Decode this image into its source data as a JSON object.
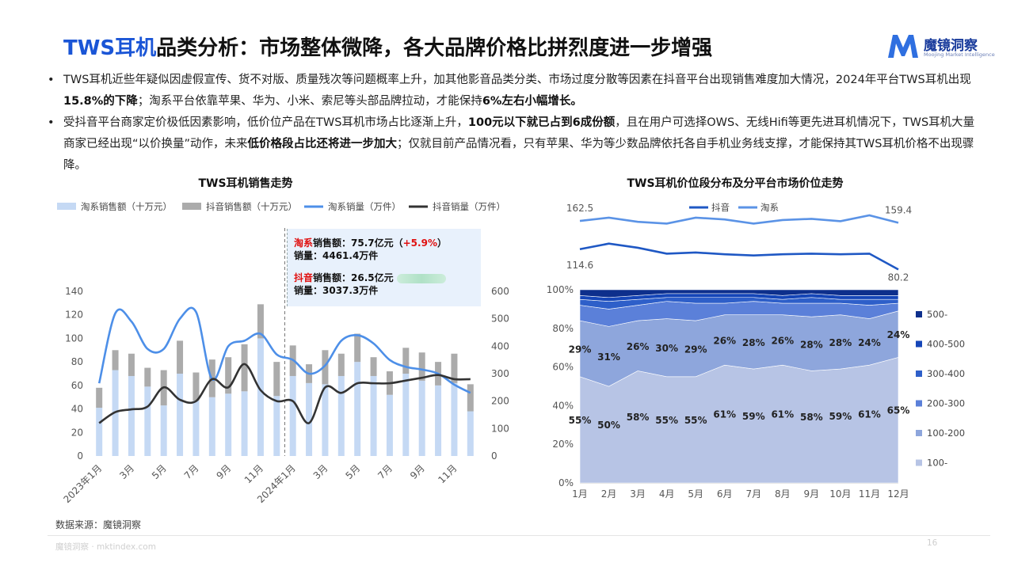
{
  "header": {
    "title_accent": "TWS耳机",
    "title_rest": "品类分析：市场整体微降，各大品牌价格比拼烈度进一步增强",
    "logo_name": "魔镜洞察",
    "logo_sub": "Moojing Market Intelligence",
    "logo_color": "#2f6fe0"
  },
  "bullets": [
    {
      "marker": "•",
      "parts": [
        {
          "t": "TWS耳机近些年疑似因虚假宣传、货不对版、质量残次等问题概率上升，加其他影音品类分类、市场过度分散等因素在抖音平台出现销售难度加大情况，2024年平台TWS耳机出现",
          "b": false
        },
        {
          "t": "15.8%的下降",
          "b": true
        },
        {
          "t": "；淘系平台依靠苹果、华为、小米、索尼等头部品牌拉动，才能保持",
          "b": false
        },
        {
          "t": "6%左右小幅增长。",
          "b": true
        }
      ]
    },
    {
      "marker": "•",
      "parts": [
        {
          "t": "受抖音平台商家定价极低因素影响，低价位产品在TWS耳机市场占比逐渐上升，",
          "b": false
        },
        {
          "t": "100元以下就已占到6成份额",
          "b": true
        },
        {
          "t": "，且在用户可选择OWS、无线Hifi等更先进耳机情况下，TWS耳机大量商家已经出现“以价换量”动作，未来",
          "b": false
        },
        {
          "t": "低价格段占比还将进一步加大",
          "b": true
        },
        {
          "t": "；仅就目前产品情况看，只有苹果、华为等少数品牌依托各自手机业务线支撑，才能保持其TWS耳机价格不出现骤降。",
          "b": false
        }
      ]
    }
  ],
  "annotation": {
    "taobao_name": "淘系",
    "taobao_sales_label": "销售额：75.7亿元（",
    "taobao_growth": "+5.9%",
    "taobao_close": "）",
    "taobao_volume": "销量：4461.4万件",
    "douyin_name": "抖音",
    "douyin_sales_label": "销售额：26.5亿元",
    "douyin_volume": "销量：3037.3万件"
  },
  "source": "数据来源：魔镜洞察",
  "footer": {
    "left": "魔镜洞察 · mktindex.com",
    "page": "16"
  },
  "chart_data": [
    {
      "type": "bar",
      "title": "TWS耳机销售走势",
      "categories": [
        "2023年1月",
        "2月",
        "3月",
        "4月",
        "5月",
        "6月",
        "7月",
        "8月",
        "9月",
        "10月",
        "11月",
        "12月",
        "2024年1月",
        "2月",
        "3月",
        "4月",
        "5月",
        "6月",
        "7月",
        "8月",
        "9月",
        "10月",
        "11月",
        "12月"
      ],
      "x_tick_labels": [
        "2023年1月",
        "",
        "3月",
        "",
        "5月",
        "",
        "7月",
        "",
        "9月",
        "",
        "11月",
        "",
        "2024年1月",
        "",
        "3月",
        "",
        "5月",
        "",
        "7月",
        "",
        "9月",
        "",
        "11月",
        ""
      ],
      "series": [
        {
          "name": "淘系销售额（十万元）",
          "kind": "bar",
          "axis": "left",
          "color": "#c5d9f4",
          "values": [
            41,
            73,
            68,
            59,
            43,
            70,
            47,
            50,
            53,
            55,
            100,
            51,
            68,
            62,
            61,
            68,
            80,
            68,
            52,
            70,
            64,
            60,
            62,
            38
          ]
        },
        {
          "name": "抖音销售额（十万元）",
          "kind": "bar",
          "axis": "left",
          "color": "#ababab",
          "values": [
            17,
            17,
            19,
            16,
            30,
            28,
            24,
            32,
            31,
            40,
            29,
            29,
            26,
            16,
            29,
            19,
            24,
            16,
            20,
            22,
            24,
            20,
            25,
            23
          ]
        },
        {
          "name": "淘系销量（万件）",
          "kind": "line",
          "axis": "right",
          "color": "#4d8fe8",
          "values": [
            265,
            520,
            490,
            390,
            390,
            500,
            525,
            280,
            400,
            420,
            445,
            370,
            350,
            300,
            330,
            420,
            440,
            410,
            350,
            325,
            315,
            300,
            260,
            230
          ]
        },
        {
          "name": "抖音销量（万件）",
          "kind": "line",
          "axis": "right",
          "color": "#333333",
          "values": [
            120,
            160,
            170,
            180,
            250,
            205,
            200,
            280,
            250,
            335,
            240,
            200,
            200,
            120,
            250,
            230,
            265,
            265,
            265,
            275,
            285,
            295,
            280,
            280
          ]
        }
      ],
      "ylim_left": [
        0,
        140
      ],
      "yticks_left": [
        0,
        20,
        40,
        60,
        80,
        100,
        120,
        140
      ],
      "ylim_right": [
        0,
        600
      ],
      "yticks_right": [
        0,
        100,
        200,
        300,
        400,
        500,
        600
      ],
      "divider_after_category": 11,
      "legend_position": "top"
    },
    {
      "type": "line",
      "title": "TWS耳机价位段分布及分平台市场价位走势",
      "categories": [
        "1月",
        "2月",
        "3月",
        "4月",
        "5月",
        "6月",
        "7月",
        "8月",
        "9月",
        "10月",
        "11月",
        "12月"
      ],
      "series": [
        {
          "name": "抖音",
          "color": "#1f58c4",
          "values": [
            114.6,
            124,
            117,
            107,
            109,
            106,
            104,
            106,
            107,
            106,
            107,
            80.2
          ]
        },
        {
          "name": "淘系",
          "color": "#5b93e6",
          "values": [
            162.5,
            168,
            161,
            158,
            168,
            165,
            158,
            164,
            166,
            162,
            172,
            159.4
          ]
        }
      ],
      "value_labels": {
        "抖音": {
          "first": "114.6",
          "last": "80.2"
        },
        "淘系": {
          "first": "162.5",
          "last": "159.4"
        }
      },
      "legend_position": "top"
    },
    {
      "type": "area",
      "stacked_percent": true,
      "categories": [
        "1月",
        "2月",
        "3月",
        "4月",
        "5月",
        "6月",
        "7月",
        "8月",
        "9月",
        "10月",
        "11月",
        "12月"
      ],
      "y_tick_labels": [
        "0%",
        "20%",
        "40%",
        "60%",
        "80%",
        "100%"
      ],
      "series": [
        {
          "name": "100-",
          "color": "#b7c4e5",
          "values": [
            55,
            50,
            58,
            55,
            55,
            61,
            59,
            61,
            58,
            59,
            61,
            65
          ]
        },
        {
          "name": "100-200",
          "color": "#8ea6dc",
          "values": [
            29,
            31,
            26,
            30,
            29,
            26,
            28,
            26,
            28,
            28,
            24,
            24
          ]
        },
        {
          "name": "200-300",
          "color": "#5b80d9",
          "values": [
            8,
            9,
            8,
            9,
            9,
            6,
            7,
            6,
            7,
            6,
            7,
            4
          ]
        },
        {
          "name": "300-400",
          "color": "#2e5fc9",
          "values": [
            3,
            4,
            3,
            2,
            3,
            3,
            2,
            2,
            3,
            2,
            3,
            2
          ]
        },
        {
          "name": "400-500",
          "color": "#1546b8",
          "values": [
            2,
            2,
            2,
            2,
            2,
            2,
            2,
            2,
            2,
            2,
            2,
            2
          ]
        },
        {
          "name": "500-",
          "color": "#0d2f8c",
          "values": [
            3,
            4,
            3,
            2,
            2,
            2,
            2,
            3,
            2,
            3,
            3,
            3
          ]
        }
      ],
      "labels": {
        "100-": [
          "55%",
          "50%",
          "58%",
          "55%",
          "55%",
          "61%",
          "59%",
          "61%",
          "58%",
          "59%",
          "61%",
          "65%"
        ],
        "100-200": [
          "29%",
          "31%",
          "26%",
          "30%",
          "29%",
          "26%",
          "28%",
          "26%",
          "28%",
          "28%",
          "24%",
          "24%"
        ]
      },
      "legend_position": "right"
    }
  ]
}
